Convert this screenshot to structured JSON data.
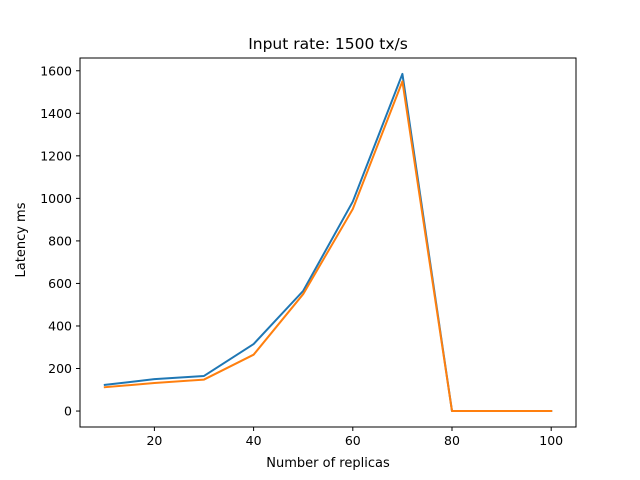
{
  "chart_data": {
    "type": "line",
    "title": "Input rate: 1500 tx/s",
    "xlabel": "Number of replicas",
    "ylabel": "Latency ms",
    "x": [
      10,
      20,
      30,
      40,
      50,
      60,
      70,
      80,
      90,
      100
    ],
    "xlim": [
      5,
      105
    ],
    "ylim": [
      -75,
      1660
    ],
    "xticks": [
      20,
      40,
      60,
      80,
      100
    ],
    "yticks": [
      0,
      200,
      400,
      600,
      800,
      1000,
      1200,
      1400,
      1600
    ],
    "grid": false,
    "legend": "none",
    "series": [
      {
        "color": "#1f77b4",
        "values": [
          123,
          150,
          165,
          315,
          565,
          985,
          1585,
          0,
          0,
          0
        ]
      },
      {
        "color": "#ff7f0e",
        "values": [
          112,
          132,
          148,
          265,
          550,
          950,
          1550,
          0,
          0,
          0
        ]
      }
    ]
  }
}
